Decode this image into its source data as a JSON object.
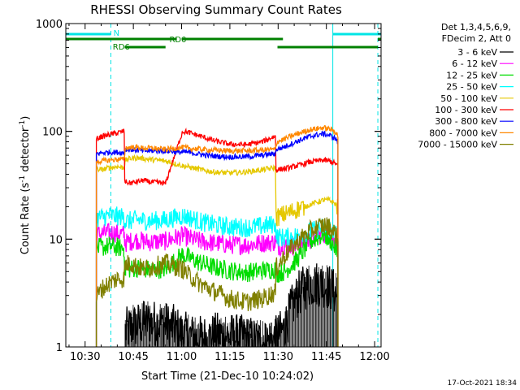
{
  "chart_data": {
    "type": "line",
    "title": "RHESSI Observing Summary Count Rates",
    "xlabel": "Start Time (21-Dec-10 10:24:02)",
    "ylabel": "Count Rate (s",
    "ylabel_sup": "-1",
    "ylabel_mid": " detector",
    "ylabel_end": ")",
    "yscale": "log",
    "xlim": [
      24.0,
      122.0
    ],
    "ylim": [
      1,
      1000
    ],
    "x_ticks": [
      {
        "v": 30,
        "label": "10:30"
      },
      {
        "v": 45,
        "label": "10:45"
      },
      {
        "v": 60,
        "label": "11:00"
      },
      {
        "v": 75,
        "label": "11:15"
      },
      {
        "v": 90,
        "label": "11:30"
      },
      {
        "v": 105,
        "label": "11:45"
      },
      {
        "v": 120,
        "label": "12:00"
      }
    ],
    "y_ticks": [
      {
        "v": 1,
        "label": "1"
      },
      {
        "v": 10,
        "label": "10"
      },
      {
        "v": 100,
        "label": "100"
      },
      {
        "v": 1000,
        "label": "1000"
      }
    ],
    "legend_header": [
      "Det 1,3,4,5,6,9,",
      "FDecim 2, Att 0"
    ],
    "series": [
      {
        "name": "3 - 6 keV",
        "color": "#000000",
        "x": [
          42.5,
          44,
          46,
          50,
          55,
          58,
          60.5,
          66,
          72,
          80,
          86,
          89.5,
          92,
          94,
          96,
          98,
          100,
          102,
          104,
          106,
          108.5
        ],
        "y": [
          1.4,
          1.5,
          1.6,
          1.7,
          1.6,
          1.5,
          1.3,
          1.2,
          1.3,
          1.2,
          1.1,
          1.2,
          1.5,
          2.2,
          3.0,
          3.5,
          3.8,
          3.9,
          3.8,
          3.6,
          3.0
        ]
      },
      {
        "name": "6 - 12 keV",
        "color": "#ff00ff",
        "x": [
          33.5,
          35,
          37.5,
          40,
          42,
          42.6,
          44,
          46,
          48,
          50,
          55,
          60.3,
          62,
          66,
          70,
          75,
          80,
          85,
          89,
          89.7,
          92,
          96,
          100,
          104,
          106,
          108,
          108.6
        ],
        "y": [
          11.0,
          11.2,
          11.5,
          11.4,
          11.1,
          9.2,
          9.5,
          9.8,
          9.6,
          9.4,
          9.6,
          10.8,
          10.3,
          9.5,
          9.2,
          8.9,
          8.8,
          9.2,
          9.4,
          8.6,
          8.6,
          8.8,
          9.8,
          11.2,
          10.8,
          9.5,
          8.5
        ]
      },
      {
        "name": "12 - 25 keV",
        "color": "#00dd00",
        "x": [
          33.5,
          35,
          37.5,
          40,
          42,
          42.6,
          44,
          46,
          48,
          50,
          55,
          60.3,
          62,
          66,
          70,
          75,
          80,
          85,
          89,
          89.7,
          92,
          96,
          100,
          104,
          106,
          108,
          108.6
        ],
        "y": [
          8.2,
          8.4,
          8.6,
          8.4,
          8.2,
          5.2,
          5.3,
          5.4,
          5.3,
          5.2,
          5.3,
          7.2,
          6.8,
          6.0,
          5.5,
          5.1,
          4.9,
          5.1,
          5.3,
          4.8,
          5.0,
          6.5,
          9.5,
          11.0,
          10.0,
          8.0,
          7.0
        ]
      },
      {
        "name": "25 - 50 keV",
        "color": "#00ffff",
        "x": [
          33.5,
          35,
          37.5,
          40,
          42,
          42.6,
          44,
          46,
          48,
          50,
          55,
          60.3,
          62,
          66,
          70,
          75,
          80,
          85,
          89,
          89.7,
          92,
          96,
          100,
          104,
          106,
          108,
          108.6
        ],
        "y": [
          15.5,
          16.0,
          16.5,
          16.3,
          16.0,
          14.5,
          14.8,
          15.2,
          15.0,
          14.8,
          15.0,
          16.5,
          16.0,
          14.5,
          13.6,
          13.0,
          12.8,
          13.2,
          13.8,
          10.5,
          10.3,
          10.8,
          11.8,
          12.8,
          12.5,
          11.5,
          10.5
        ]
      },
      {
        "name": "50 - 100 keV",
        "color": "#e5c800",
        "x": [
          33.5,
          35,
          37.5,
          40,
          42,
          42.6,
          44,
          46,
          48,
          50,
          55,
          60.3,
          62,
          66,
          70,
          75,
          80,
          85,
          89,
          89.7,
          92,
          96,
          100,
          104,
          106,
          108,
          108.6
        ],
        "y": [
          45,
          44,
          46,
          47,
          46,
          54,
          56,
          57,
          56,
          55,
          53,
          48,
          47,
          44,
          42,
          41,
          42,
          44,
          46,
          16,
          17,
          19,
          21,
          23,
          23,
          21,
          19
        ]
      },
      {
        "name": "100 - 300 keV",
        "color": "#ff0000",
        "x": [
          33.5,
          35,
          37.5,
          40,
          42,
          42.6,
          44,
          46,
          48,
          50,
          55,
          60.3,
          62,
          66,
          70,
          75,
          80,
          85,
          89,
          89.7,
          92,
          96,
          100,
          104,
          106,
          108,
          108.6
        ],
        "y": [
          85,
          89,
          93,
          97,
          100,
          34,
          33,
          34,
          35,
          34,
          33,
          100,
          98,
          90,
          82,
          76,
          75,
          80,
          90,
          44,
          45,
          48,
          52,
          54,
          53,
          50,
          47
        ]
      },
      {
        "name": "300 - 800 keV",
        "color": "#0000ff",
        "x": [
          33.5,
          35,
          37.5,
          40,
          42,
          42.6,
          44,
          46,
          48,
          50,
          55,
          60.3,
          62,
          66,
          70,
          75,
          80,
          85,
          89,
          89.7,
          92,
          96,
          100,
          104,
          106,
          108,
          108.6
        ],
        "y": [
          62,
          63,
          64,
          64,
          63,
          68,
          68,
          67,
          66,
          66,
          66,
          64,
          64,
          61,
          59,
          58,
          58,
          60,
          62,
          68,
          72,
          81,
          90,
          95,
          92,
          85,
          78
        ]
      },
      {
        "name": "800 - 7000 keV",
        "color": "#ff8800",
        "x": [
          33.5,
          35,
          37.5,
          40,
          42,
          42.6,
          44,
          46,
          48,
          50,
          55,
          60.3,
          62,
          66,
          70,
          75,
          80,
          85,
          89,
          89.7,
          92,
          96,
          100,
          104,
          106,
          108,
          108.6
        ],
        "y": [
          52,
          53,
          54,
          55,
          55,
          70,
          71,
          71,
          70,
          70,
          68,
          71,
          70,
          68,
          67,
          66,
          66,
          67,
          68,
          80,
          85,
          95,
          104,
          108,
          105,
          98,
          90
        ]
      },
      {
        "name": "7000 - 15000 keV",
        "color": "#808000",
        "x": [
          33.5,
          35,
          37.5,
          40,
          42,
          42.6,
          44,
          46,
          48,
          50,
          55,
          60.3,
          62,
          66,
          70,
          75,
          80,
          85,
          89,
          89.7,
          92,
          96,
          100,
          104,
          106,
          108,
          108.6
        ],
        "y": [
          2.9,
          3.4,
          3.9,
          4.3,
          4.3,
          5.8,
          6.0,
          5.6,
          5.3,
          5.4,
          6.0,
          5.3,
          4.7,
          3.8,
          3.3,
          2.8,
          2.6,
          2.8,
          3.2,
          5.5,
          7.0,
          9.5,
          12.0,
          13.5,
          13.0,
          11.0,
          9.0
        ]
      }
    ],
    "state_bars": [
      {
        "label": "N",
        "color": "#00e5e5",
        "segments": [
          [
            24.0,
            38.0
          ],
          [
            107.0,
            122.0
          ]
        ]
      },
      {
        "label": "RD0",
        "color": "#008000",
        "segments": [
          [
            24.0,
            58.5
          ],
          [
            60.0,
            91.5
          ],
          [
            121.0,
            122.0
          ]
        ]
      },
      {
        "label": "RD6",
        "color": "#008000",
        "segments": [
          [
            42.3,
            55.0
          ],
          [
            89.8,
            121.0
          ]
        ]
      }
    ],
    "vlines": [
      {
        "x": 24.0,
        "color": "#00e5e5",
        "style": "solid"
      },
      {
        "x": 38.0,
        "color": "#00e5e5",
        "style": "dashed"
      },
      {
        "x": 107.0,
        "color": "#00e5e5",
        "style": "solid"
      },
      {
        "x": 121.0,
        "color": "#00e5e5",
        "style": "dashed"
      }
    ]
  },
  "footer": {
    "timestamp": "17-Oct-2021 18:34"
  }
}
